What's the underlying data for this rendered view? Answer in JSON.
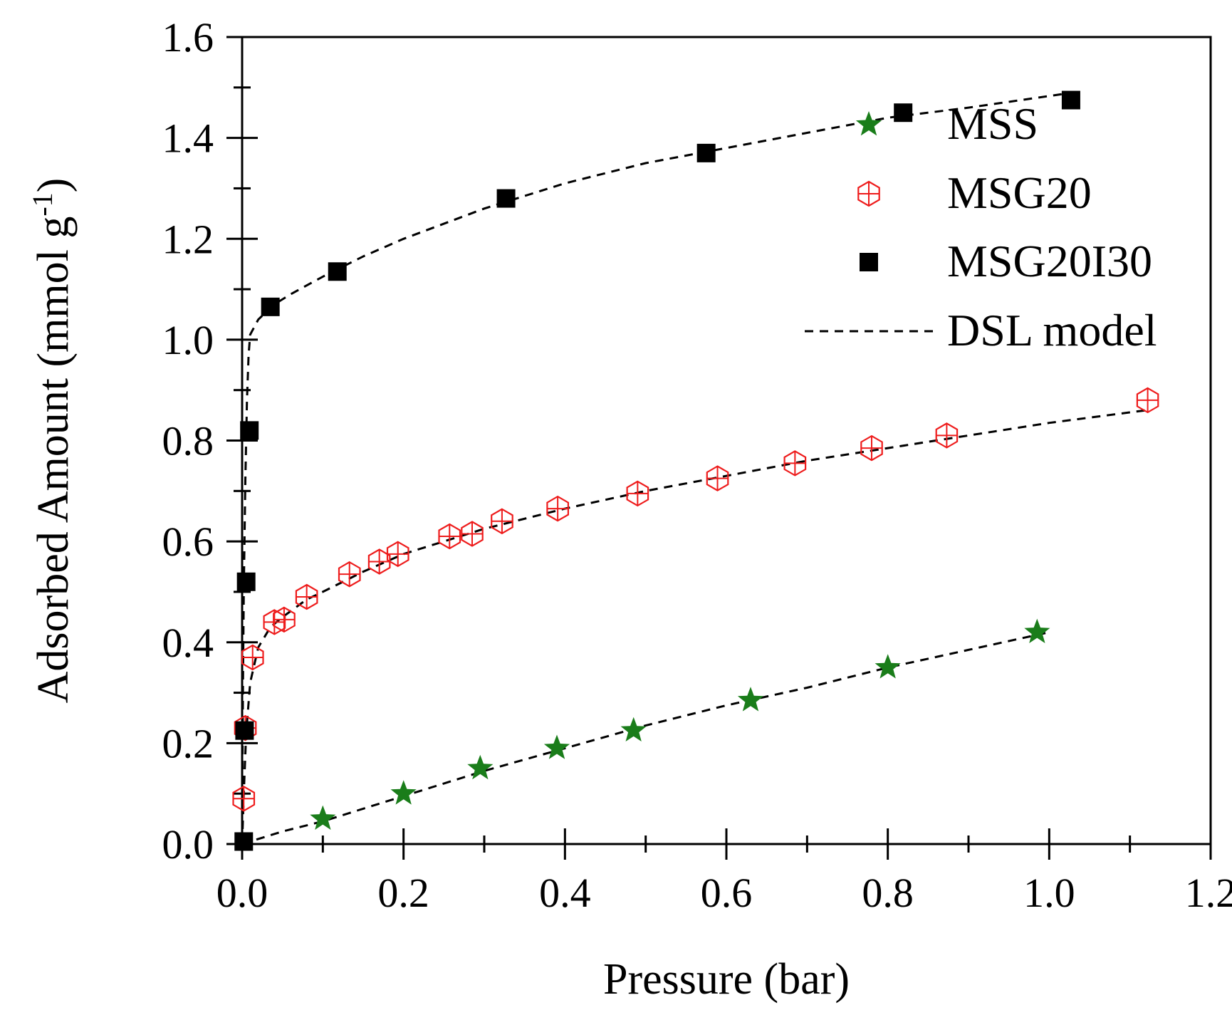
{
  "chart_data": {
    "type": "scatter",
    "xlabel": "Pressure (bar)",
    "ylabel": "Adsorbed Amount (mmol g",
    "ylabel_sup": "-1",
    "ylabel_end": ")",
    "xlim": [
      0,
      1.2
    ],
    "ylim": [
      0,
      1.6
    ],
    "x_ticks": [
      "0.0",
      "0.2",
      "0.4",
      "0.6",
      "0.8",
      "1.0",
      "1.2"
    ],
    "y_ticks": [
      "0.0",
      "0.2",
      "0.4",
      "0.6",
      "0.8",
      "1.0",
      "1.2",
      "1.4",
      "1.6"
    ],
    "grid": false,
    "legend_position": "top-right",
    "series": [
      {
        "name": "MSS",
        "marker": "star",
        "color": "#1a7d1a",
        "points": [
          [
            0.1,
            0.05
          ],
          [
            0.2,
            0.1
          ],
          [
            0.295,
            0.15
          ],
          [
            0.39,
            0.19
          ],
          [
            0.485,
            0.225
          ],
          [
            0.63,
            0.285
          ],
          [
            0.8,
            0.35
          ],
          [
            0.985,
            0.42
          ]
        ]
      },
      {
        "name": "MSG20",
        "marker": "hexagon-cross",
        "color": "#ee1c1c",
        "points": [
          [
            0.002,
            0.09
          ],
          [
            0.004,
            0.23
          ],
          [
            0.013,
            0.37
          ],
          [
            0.04,
            0.44
          ],
          [
            0.052,
            0.445
          ],
          [
            0.08,
            0.49
          ],
          [
            0.133,
            0.535
          ],
          [
            0.17,
            0.56
          ],
          [
            0.193,
            0.575
          ],
          [
            0.257,
            0.61
          ],
          [
            0.285,
            0.615
          ],
          [
            0.322,
            0.64
          ],
          [
            0.391,
            0.665
          ],
          [
            0.49,
            0.695
          ],
          [
            0.589,
            0.725
          ],
          [
            0.685,
            0.755
          ],
          [
            0.78,
            0.785
          ],
          [
            0.873,
            0.81
          ],
          [
            1.122,
            0.88
          ]
        ]
      },
      {
        "name": "MSG20I30",
        "marker": "square",
        "color": "#000000",
        "points": [
          [
            0.002,
            0.005
          ],
          [
            0.003,
            0.225
          ],
          [
            0.005,
            0.52
          ],
          [
            0.009,
            0.82
          ],
          [
            0.035,
            1.065
          ],
          [
            0.118,
            1.135
          ],
          [
            0.327,
            1.28
          ],
          [
            0.575,
            1.37
          ],
          [
            0.819,
            1.45
          ],
          [
            1.027,
            1.475
          ]
        ]
      }
    ],
    "model_fits": {
      "name": "DSL model",
      "curves": [
        [
          [
            0.0,
            0.0
          ],
          [
            0.05,
            0.025
          ],
          [
            0.1,
            0.045
          ],
          [
            0.2,
            0.095
          ],
          [
            0.3,
            0.145
          ],
          [
            0.4,
            0.19
          ],
          [
            0.5,
            0.235
          ],
          [
            0.6,
            0.275
          ],
          [
            0.7,
            0.31
          ],
          [
            0.8,
            0.35
          ],
          [
            0.9,
            0.385
          ],
          [
            1.0,
            0.42
          ]
        ],
        [
          [
            0.0,
            0.0
          ],
          [
            0.002,
            0.1
          ],
          [
            0.005,
            0.22
          ],
          [
            0.01,
            0.32
          ],
          [
            0.02,
            0.39
          ],
          [
            0.035,
            0.43
          ],
          [
            0.05,
            0.45
          ],
          [
            0.08,
            0.485
          ],
          [
            0.1,
            0.5
          ],
          [
            0.15,
            0.54
          ],
          [
            0.2,
            0.575
          ],
          [
            0.3,
            0.625
          ],
          [
            0.4,
            0.665
          ],
          [
            0.5,
            0.7
          ],
          [
            0.6,
            0.73
          ],
          [
            0.7,
            0.76
          ],
          [
            0.8,
            0.785
          ],
          [
            0.9,
            0.81
          ],
          [
            1.0,
            0.835
          ],
          [
            1.12,
            0.86
          ]
        ],
        [
          [
            0.0,
            0.0
          ],
          [
            0.001,
            0.3
          ],
          [
            0.002,
            0.5
          ],
          [
            0.004,
            0.72
          ],
          [
            0.006,
            0.88
          ],
          [
            0.008,
            0.97
          ],
          [
            0.01,
            1.01
          ],
          [
            0.02,
            1.04
          ],
          [
            0.04,
            1.07
          ],
          [
            0.06,
            1.09
          ],
          [
            0.1,
            1.125
          ],
          [
            0.15,
            1.165
          ],
          [
            0.2,
            1.2
          ],
          [
            0.3,
            1.26
          ],
          [
            0.4,
            1.31
          ],
          [
            0.5,
            1.35
          ],
          [
            0.6,
            1.38
          ],
          [
            0.7,
            1.41
          ],
          [
            0.8,
            1.44
          ],
          [
            0.9,
            1.46
          ],
          [
            1.03,
            1.49
          ]
        ]
      ]
    }
  }
}
